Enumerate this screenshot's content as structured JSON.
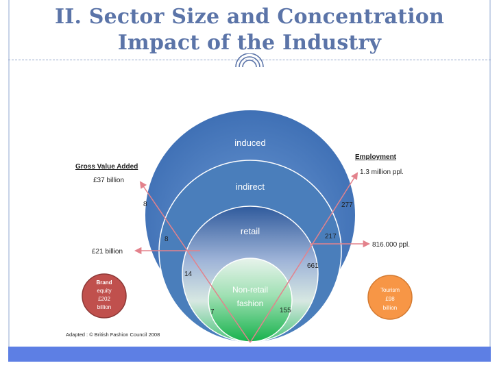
{
  "slide": {
    "title_line1": "II. Sector Size and Concentration",
    "title_line2": "Impact of the Industry"
  },
  "diagram": {
    "rings": {
      "induced": "induced",
      "indirect": "indirect",
      "retail": "retail",
      "non_retail_line1": "Non-retail",
      "non_retail_line2": "fashion"
    },
    "gva": {
      "heading": "Gross Value Added",
      "total": "£37 billion",
      "mid": "£21 billion",
      "n_induced": "8",
      "n_indirect": "8",
      "n_retail": "14",
      "n_nonretail": "7"
    },
    "employment": {
      "heading": "Employment",
      "total": "1.3 million ppl.",
      "mid": "816.000 ppl.",
      "n_induced": "277",
      "n_indirect": "217",
      "n_retail": "661",
      "n_nonretail": "155"
    },
    "brand_equity": {
      "line1": "Brand",
      "line2": "equity",
      "line3": "£202",
      "line4": "billion",
      "color": "#c0504d"
    },
    "tourism": {
      "line1": "Tourism",
      "line2": "£98",
      "line3": "billion",
      "color": "#f79646"
    },
    "source": "Adapted : © British Fashion Council 2008",
    "colors": {
      "outer_ring": "#4a7ebb",
      "arrow": "#e3828c",
      "nonretail_green": "#1db954"
    }
  }
}
